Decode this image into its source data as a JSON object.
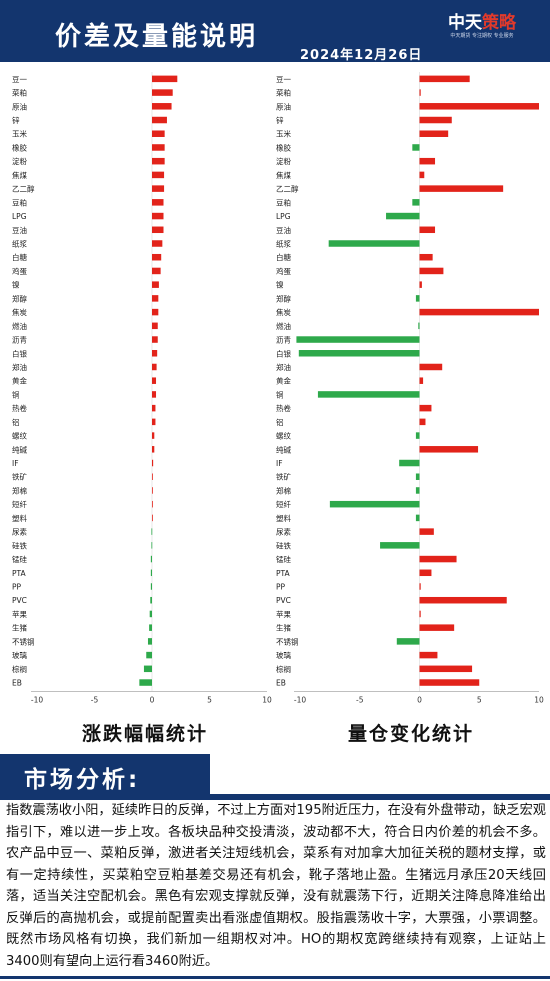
{
  "header": {
    "title": "价差及量能说明",
    "date": "2024年12月26日",
    "brand_main": "中天",
    "brand_accent": "策略",
    "brand_tagline": "中天期货 专注期权 专业服务"
  },
  "colors": {
    "header_bg": "#13356e",
    "positive": "#e2231a",
    "negative": "#2ea94b"
  },
  "chart_data": [
    {
      "type": "bar",
      "orientation": "horizontal",
      "title": "涨跌幅幅统计",
      "categories": [
        "豆一",
        "菜粕",
        "原油",
        "锌",
        "玉米",
        "橡胶",
        "淀粉",
        "焦煤",
        "乙二醇",
        "豆粕",
        "LPG",
        "豆油",
        "纸浆",
        "白糖",
        "鸡蛋",
        "镍",
        "郑醇",
        "焦炭",
        "燃油",
        "沥青",
        "白银",
        "郑油",
        "黄金",
        "铜",
        "热卷",
        "铝",
        "螺纹",
        "纯碱",
        "IF",
        "铁矿",
        "郑棉",
        "短纤",
        "塑料",
        "尿素",
        "硅铁",
        "锰硅",
        "PTA",
        "PP",
        "PVC",
        "苹果",
        "生猪",
        "不锈钢",
        "玻璃",
        "棕榈",
        "EB"
      ],
      "values": [
        2.2,
        1.8,
        1.7,
        1.3,
        1.1,
        1.1,
        1.1,
        1.05,
        1.05,
        1.0,
        1.0,
        1.0,
        0.9,
        0.8,
        0.75,
        0.6,
        0.55,
        0.55,
        0.5,
        0.5,
        0.45,
        0.4,
        0.35,
        0.35,
        0.3,
        0.3,
        0.2,
        0.2,
        0.1,
        0.0,
        0.0,
        0.0,
        0.0,
        -0.05,
        -0.05,
        -0.1,
        -0.1,
        -0.1,
        -0.15,
        -0.2,
        -0.25,
        -0.35,
        -0.5,
        -0.7,
        -1.1
      ],
      "xlim": [
        -10,
        10
      ],
      "xticks": [
        -10,
        -5,
        0,
        5,
        10
      ]
    },
    {
      "type": "bar",
      "orientation": "horizontal",
      "title": "量仓变化统计",
      "categories": [
        "豆一",
        "菜粕",
        "原油",
        "锌",
        "玉米",
        "橡胶",
        "淀粉",
        "焦煤",
        "乙二醇",
        "豆粕",
        "LPG",
        "豆油",
        "纸浆",
        "白糖",
        "鸡蛋",
        "镍",
        "郑醇",
        "焦炭",
        "燃油",
        "沥青",
        "白银",
        "郑油",
        "黄金",
        "铜",
        "热卷",
        "铝",
        "螺纹",
        "纯碱",
        "IF",
        "铁矿",
        "郑棉",
        "短纤",
        "塑料",
        "尿素",
        "硅铁",
        "锰硅",
        "PTA",
        "PP",
        "PVC",
        "苹果",
        "生猪",
        "不锈钢",
        "玻璃",
        "棕榈",
        "EB"
      ],
      "values": [
        4.2,
        0.1,
        10.0,
        2.7,
        2.4,
        -0.6,
        1.3,
        0.4,
        7.0,
        -0.6,
        -2.8,
        1.3,
        -7.6,
        1.1,
        2.0,
        0.2,
        -0.3,
        10.0,
        -0.1,
        -10.3,
        -10.1,
        1.9,
        0.3,
        -8.5,
        1.0,
        0.5,
        -0.3,
        4.9,
        -1.7,
        -0.3,
        -0.3,
        -7.5,
        -0.3,
        1.2,
        -3.3,
        3.1,
        1.0,
        0.1,
        7.3,
        0.1,
        2.9,
        -1.9,
        1.5,
        4.4,
        5.0
      ],
      "xlim": [
        -10,
        10
      ],
      "xticks": [
        -10,
        -5,
        0,
        5,
        10
      ]
    }
  ],
  "analysis": {
    "heading": "市场分析:",
    "body": "指数震荡收小阳，延续昨日的反弹，不过上方面对195附近压力，在没有外盘带动，缺乏宏观指引下，难以进一步上攻。各板块品种交投清淡，波动都不大，符合日内价差的机会不多。农产品中豆一、菜粕反弹，激进者关注短线机会，菜系有对加拿大加征关税的题材支撑，或有一定持续性，买菜粕空豆粕基差交易还有机会，靴子落地止盈。生猪远月承压20天线回落，适当关注空配机会。黑色有宏观支撑就反弹，没有就震荡下行，近期关注降息降准给出反弹后的高抛机会，或提前配置卖出看涨虚值期权。股指震荡收十字，大票强，小票调整。既然市场风格有切换，我们新加一组期权对冲。HO的期权宽跨继续持有观察，上证站上3400则有望向上运行看3460附近。"
  }
}
